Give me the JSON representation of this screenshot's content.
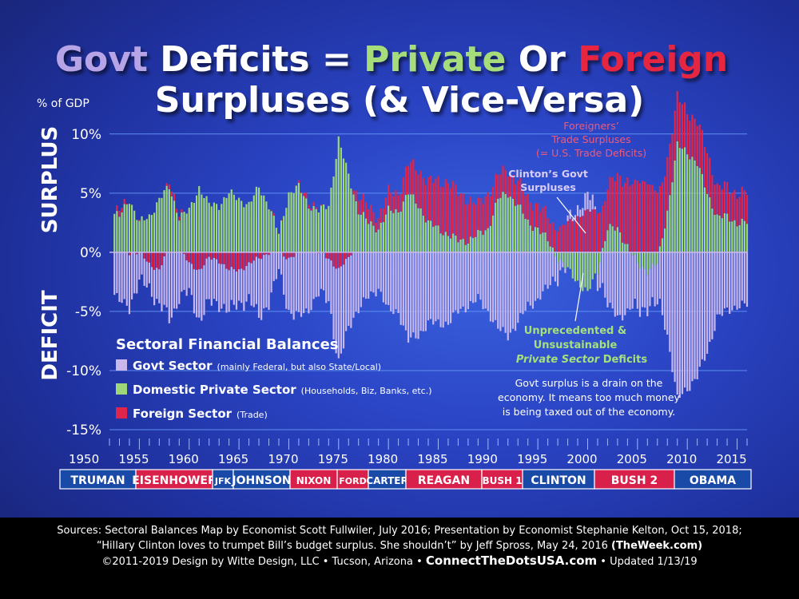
{
  "title": {
    "line1_parts": [
      {
        "text": "Govt",
        "color": "#b7a4e6"
      },
      {
        "text": " Deficits = ",
        "color": "#ffffff"
      },
      {
        "text": "Private",
        "color": "#a6dc7a"
      },
      {
        "text": " Or ",
        "color": "#ffffff"
      },
      {
        "text": "Foreign",
        "color": "#e6273f"
      }
    ],
    "line2": "Surpluses (& Vice-Versa)"
  },
  "axis": {
    "unit_label": "% of GDP",
    "surplus_label": "SURPLUS",
    "deficit_label": "DEFICIT",
    "y_ticks": [
      {
        "value": 10,
        "label": "10%"
      },
      {
        "value": 5,
        "label": "5%"
      },
      {
        "value": 0,
        "label": "0%"
      },
      {
        "value": -5,
        "label": "-5%"
      },
      {
        "value": -10,
        "label": "-10%"
      },
      {
        "value": -15,
        "label": "-15%"
      }
    ],
    "x_ticks": [
      1950,
      1955,
      1960,
      1965,
      1970,
      1975,
      1980,
      1985,
      1990,
      1995,
      2000,
      2005,
      2010,
      2015
    ]
  },
  "legend": {
    "title": "Sectoral Financial Balances",
    "items": [
      {
        "label": "Govt Sector",
        "note": "(mainly Federal, but also State/Local)",
        "color": "#c8b8ec"
      },
      {
        "label": "Domestic Private Sector",
        "note": "(Households, Biz, Banks, etc.)",
        "color": "#9ed77a"
      },
      {
        "label": "Foreign Sector",
        "note": "(Trade)",
        "color": "#e0254a"
      }
    ]
  },
  "annotations": {
    "foreign": [
      "Foreigners’",
      "Trade Surpluses",
      "(= U.S. Trade Deficits)"
    ],
    "clinton": [
      "Clinton’s Govt",
      "Surpluses"
    ],
    "private_deficits": [
      "Unprecedented &",
      "Unsustainable"
    ],
    "private_deficits_last": "Private Sector",
    "private_deficits_last2": " Deficits",
    "drain": [
      "Govt surplus is a drain on the",
      "economy. It means too much money",
      "is being taxed out of the economy."
    ]
  },
  "presidents": [
    {
      "name": "TRUMAN",
      "color": "#1a4aa8"
    },
    {
      "name": "EISENHOWER",
      "color": "#d8204a"
    },
    {
      "name": "JFK",
      "color": "#1a4aa8"
    },
    {
      "name": "JOHNSON",
      "color": "#1a4aa8"
    },
    {
      "name": "NIXON",
      "color": "#d8204a"
    },
    {
      "name": "FORD",
      "color": "#d8204a"
    },
    {
      "name": "CARTER",
      "color": "#1a4aa8"
    },
    {
      "name": "REAGAN",
      "color": "#d8204a"
    },
    {
      "name": "BUSH 1",
      "color": "#d8204a"
    },
    {
      "name": "CLINTON",
      "color": "#1a4aa8"
    },
    {
      "name": "BUSH 2",
      "color": "#d8204a"
    },
    {
      "name": "OBAMA",
      "color": "#1a4aa8"
    }
  ],
  "footer": {
    "line1": "Sources: Sectoral Balances Map by Economist Scott Fullwiler, July 2016; Presentation by Economist Stephanie Kelton, Oct 15, 2018;",
    "line2a": "“Hillary Clinton loves to trumpet Bill’s budget surplus. She shouldn’t” by Jeff Spross, May 24, 2016 ",
    "line2b": "(TheWeek.com)",
    "line3a": "©2011-2019 Design by Witte Design, LLC • Tucson, Arizona • ",
    "line3b": "ConnectTheDotsUSA.com",
    "line3c": " • Updated 1/13/19"
  },
  "chart_data": {
    "type": "bar",
    "stacked": true,
    "x_unit": "year (quarterly)",
    "ylabel": "% of GDP",
    "ylim": [
      -15,
      11
    ],
    "xlim": [
      1952,
      2016
    ],
    "grid": true,
    "series": [
      {
        "name": "Govt Sector",
        "color": "#c8b8ec",
        "points": [
          [
            1952,
            -3
          ],
          [
            1953,
            -4.2
          ],
          [
            1954,
            -4.5
          ],
          [
            1955,
            -2.5
          ],
          [
            1956,
            -2
          ],
          [
            1957,
            -3
          ],
          [
            1958,
            -5.8
          ],
          [
            1959,
            -4
          ],
          [
            1960,
            -2.5
          ],
          [
            1961,
            -4.2
          ],
          [
            1962,
            -3.8
          ],
          [
            1963,
            -3.6
          ],
          [
            1964,
            -3.5
          ],
          [
            1965,
            -2.8
          ],
          [
            1966,
            -3
          ],
          [
            1967,
            -5
          ],
          [
            1968,
            -4.2
          ],
          [
            1969,
            -1.5
          ],
          [
            1970,
            -4.5
          ],
          [
            1971,
            -5.5
          ],
          [
            1972,
            -4.8
          ],
          [
            1973,
            -3.5
          ],
          [
            1974,
            -3.5
          ],
          [
            1975,
            -8
          ],
          [
            1976,
            -6
          ],
          [
            1977,
            -4.8
          ],
          [
            1978,
            -3.8
          ],
          [
            1979,
            -3
          ],
          [
            1980,
            -5
          ],
          [
            1981,
            -5
          ],
          [
            1982,
            -7.5
          ],
          [
            1983,
            -7
          ],
          [
            1984,
            -6
          ],
          [
            1985,
            -6
          ],
          [
            1986,
            -6
          ],
          [
            1987,
            -5
          ],
          [
            1988,
            -4.5
          ],
          [
            1989,
            -4
          ],
          [
            1990,
            -5
          ],
          [
            1991,
            -6.5
          ],
          [
            1992,
            -7
          ],
          [
            1993,
            -6
          ],
          [
            1994,
            -4.5
          ],
          [
            1995,
            -4
          ],
          [
            1996,
            -3
          ],
          [
            1997,
            -1.5
          ],
          [
            1998,
            0.2
          ],
          [
            1999,
            0.8
          ],
          [
            2000,
            1.2
          ],
          [
            2000.5,
            1
          ],
          [
            2001,
            -1
          ],
          [
            2002,
            -4.5
          ],
          [
            2003,
            -5.5
          ],
          [
            2004,
            -5
          ],
          [
            2005,
            -4
          ],
          [
            2006,
            -3
          ],
          [
            2007,
            -3.5
          ],
          [
            2008,
            -7
          ],
          [
            2009,
            -12.5
          ],
          [
            2010,
            -11.5
          ],
          [
            2011,
            -10.5
          ],
          [
            2012,
            -8.5
          ],
          [
            2013,
            -5.5
          ],
          [
            2014,
            -5
          ],
          [
            2015,
            -4.5
          ],
          [
            2016,
            -4.5
          ]
        ]
      },
      {
        "name": "Domestic Private Sector",
        "color": "#9ed77a",
        "points": [
          [
            1952,
            3.5
          ],
          [
            1953,
            3
          ],
          [
            1954,
            4.5
          ],
          [
            1955,
            2.5
          ],
          [
            1956,
            3
          ],
          [
            1957,
            4.5
          ],
          [
            1958,
            5.5
          ],
          [
            1959,
            3
          ],
          [
            1960,
            3.5
          ],
          [
            1961,
            5.5
          ],
          [
            1962,
            4
          ],
          [
            1963,
            4
          ],
          [
            1964,
            5
          ],
          [
            1965,
            4.5
          ],
          [
            1966,
            4
          ],
          [
            1967,
            5.5
          ],
          [
            1968,
            4
          ],
          [
            1969,
            1.5
          ],
          [
            1970,
            5
          ],
          [
            1971,
            5.5
          ],
          [
            1972,
            4
          ],
          [
            1973,
            3.5
          ],
          [
            1974,
            4
          ],
          [
            1975,
            9.5
          ],
          [
            1976,
            6.5
          ],
          [
            1977,
            3.5
          ],
          [
            1978,
            2.5
          ],
          [
            1979,
            2
          ],
          [
            1980,
            3.5
          ],
          [
            1981,
            3.5
          ],
          [
            1982,
            5
          ],
          [
            1983,
            4
          ],
          [
            1984,
            2.5
          ],
          [
            1985,
            2
          ],
          [
            1986,
            1.5
          ],
          [
            1987,
            1
          ],
          [
            1988,
            1
          ],
          [
            1989,
            1.5
          ],
          [
            1990,
            2
          ],
          [
            1991,
            4.5
          ],
          [
            1992,
            5
          ],
          [
            1993,
            4
          ],
          [
            1994,
            2.5
          ],
          [
            1995,
            2
          ],
          [
            1996,
            1
          ],
          [
            1997,
            -0.5
          ],
          [
            1998,
            -1.5
          ],
          [
            1999,
            -2.5
          ],
          [
            2000,
            -3.5
          ],
          [
            2001,
            -1.5
          ],
          [
            2002,
            2
          ],
          [
            2003,
            2
          ],
          [
            2004,
            0.5
          ],
          [
            2005,
            -1
          ],
          [
            2006,
            -1.5
          ],
          [
            2007,
            -1
          ],
          [
            2008,
            3.5
          ],
          [
            2009,
            9
          ],
          [
            2010,
            8.5
          ],
          [
            2011,
            7.5
          ],
          [
            2012,
            5
          ],
          [
            2013,
            3
          ],
          [
            2014,
            3
          ],
          [
            2015,
            2.5
          ],
          [
            2016,
            2.5
          ]
        ]
      },
      {
        "name": "Foreign Sector",
        "color": "#e0254a",
        "points": [
          [
            1952,
            -0.5
          ],
          [
            1953,
            0.5
          ],
          [
            1954,
            0
          ],
          [
            1955,
            0
          ],
          [
            1956,
            -1
          ],
          [
            1957,
            -1.5
          ],
          [
            1958,
            0.5
          ],
          [
            1959,
            0.5
          ],
          [
            1960,
            -1
          ],
          [
            1961,
            -1.5
          ],
          [
            1962,
            -0.5
          ],
          [
            1963,
            -0.7
          ],
          [
            1964,
            -1.5
          ],
          [
            1965,
            -1.5
          ],
          [
            1966,
            -1
          ],
          [
            1967,
            -0.5
          ],
          [
            1968,
            0
          ],
          [
            1969,
            0
          ],
          [
            1970,
            -0.5
          ],
          [
            1971,
            0
          ],
          [
            1972,
            0.5
          ],
          [
            1973,
            0
          ],
          [
            1974,
            -0.5
          ],
          [
            1975,
            -1.5
          ],
          [
            1976,
            -0.5
          ],
          [
            1977,
            1.3
          ],
          [
            1978,
            1.3
          ],
          [
            1979,
            1
          ],
          [
            1980,
            1.5
          ],
          [
            1981,
            1.5
          ],
          [
            1982,
            2.5
          ],
          [
            1983,
            3
          ],
          [
            1984,
            3.5
          ],
          [
            1985,
            4
          ],
          [
            1986,
            4.5
          ],
          [
            1987,
            4
          ],
          [
            1988,
            3.5
          ],
          [
            1989,
            2.5
          ],
          [
            1990,
            3
          ],
          [
            1991,
            2
          ],
          [
            1992,
            2
          ],
          [
            1993,
            2
          ],
          [
            1994,
            2
          ],
          [
            1995,
            2
          ],
          [
            1996,
            2
          ],
          [
            1997,
            2
          ],
          [
            1998,
            2.5
          ],
          [
            1999,
            3
          ],
          [
            2000,
            3.5
          ],
          [
            2001,
            3.5
          ],
          [
            2002,
            3.5
          ],
          [
            2003,
            4.5
          ],
          [
            2004,
            5.5
          ],
          [
            2005,
            6
          ],
          [
            2006,
            6
          ],
          [
            2007,
            5
          ],
          [
            2008,
            4.5
          ],
          [
            2009,
            4
          ],
          [
            2010,
            3.5
          ],
          [
            2011,
            3.5
          ],
          [
            2012,
            3.5
          ],
          [
            2013,
            2.5
          ],
          [
            2014,
            2.5
          ],
          [
            2015,
            2.5
          ],
          [
            2016,
            2.5
          ]
        ]
      }
    ]
  }
}
